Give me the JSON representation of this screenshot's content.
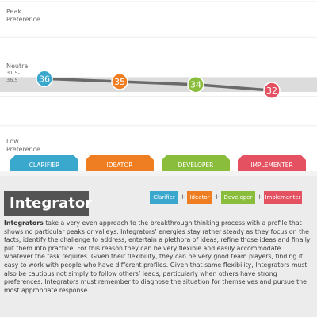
{
  "chart_data": {
    "type": "line",
    "y_axis_labels": {
      "top": "Peak\nPreference",
      "middle": "Neutral",
      "middle_range": "31.5-\n36.5",
      "bottom": "Low\nPreference"
    },
    "neutral_band": [
      31.5,
      36.5
    ],
    "ylim": [
      10,
      60
    ],
    "categories": [
      "CLARIFIER",
      "IDEATOR",
      "DEVELOPER",
      "IMPLEMENTER"
    ],
    "values": [
      36,
      35,
      34,
      32
    ],
    "point_colors": [
      "#3aa7cc",
      "#ef7d22",
      "#8bbd3c",
      "#e45161"
    ],
    "line_color": "#6a6a6a",
    "band_color": "#dcdcdc",
    "gridlines": true
  },
  "profile": {
    "title": "Integrator",
    "legend": [
      {
        "label": "Clarifier",
        "color": "#3aa7cc"
      },
      {
        "label": "Ideator",
        "color": "#ef7d22"
      },
      {
        "label": "Developer",
        "color": "#8bbd3c"
      },
      {
        "label": "Implementer",
        "color": "#e45161"
      }
    ],
    "legend_separator": "+",
    "description_lead": "Integrators",
    "description_body": " take a very even approach to the breakthrough thinking process with a profile that shows no particular peaks or valleys. Integrators’ energies stay rather steady as they focus on the facts, identify the challenge to address, entertain a plethora of ideas, refine those ideas and finally put them into practice. For this reason they can be very flexible and easily accommodate whatever the task requires. Given their flexibility, they can be very good team players, finding it easy to work with people who have different profiles. Given that same flexibility, Integrators must also be cautious not simply to follow others’ leads, particularly when others have strong preferences. Integrators must remember to diagnose the situation for themselves and pursue the most appropriate response."
  }
}
